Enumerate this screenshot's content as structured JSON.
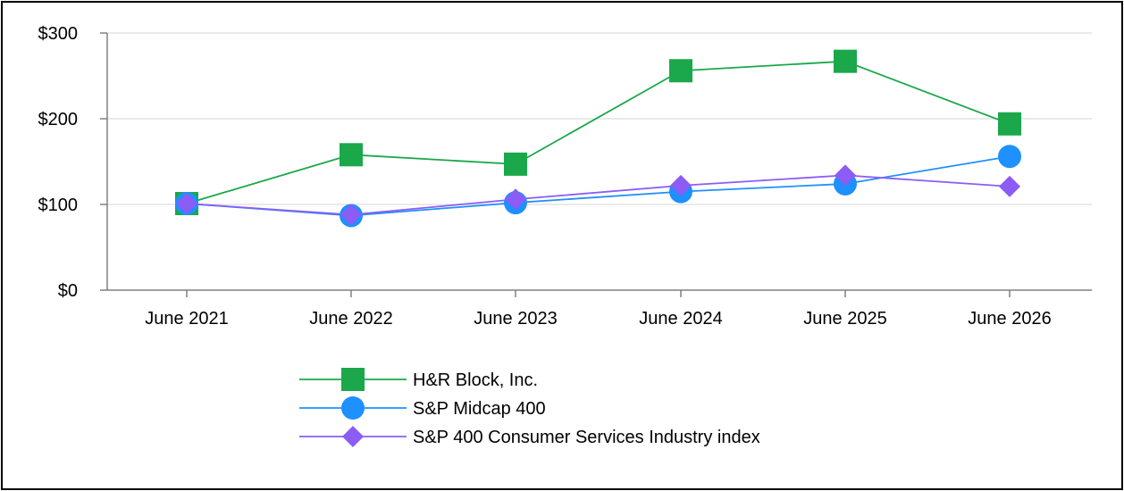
{
  "chart_data": {
    "type": "line",
    "categories": [
      "June 2021",
      "June 2022",
      "June 2023",
      "June 2024",
      "June 2025",
      "June 2026"
    ],
    "series": [
      {
        "name": "H&R Block, Inc.",
        "values": [
          101,
          158,
          147,
          256,
          267,
          194
        ],
        "color": "#1aa84a",
        "marker": "square"
      },
      {
        "name": "S&P Midcap 400",
        "values": [
          101,
          87,
          102,
          115,
          124,
          156
        ],
        "color": "#1e90ff",
        "marker": "circle"
      },
      {
        "name": "S&P 400 Consumer Services Industry index",
        "values": [
          101,
          88,
          106,
          122,
          134,
          121
        ],
        "color": "#8b5cf6",
        "marker": "diamond"
      }
    ],
    "y_ticks": [
      {
        "value": 0,
        "label": "$0"
      },
      {
        "value": 100,
        "label": "$100"
      },
      {
        "value": 200,
        "label": "$200"
      },
      {
        "value": 300,
        "label": "$300"
      }
    ],
    "ylim": [
      0,
      300
    ],
    "grid": true,
    "legend_position": "bottom",
    "title": "",
    "xlabel": "",
    "ylabel": ""
  }
}
